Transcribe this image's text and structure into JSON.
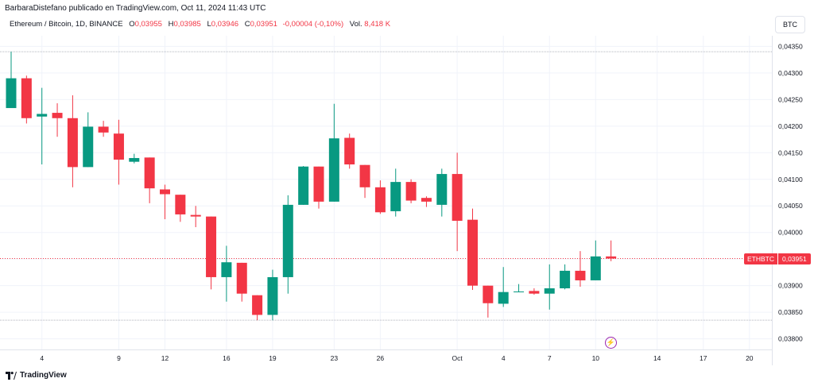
{
  "header": {
    "published": "BarbaraDistefano publicado en TradingView.com, Oct 11, 2024 11:43 UTC"
  },
  "legend": {
    "symbol": "Ethereum / Bitcoin, 1D, BINANCE",
    "o_label": "O",
    "o": "0,03955",
    "h_label": "H",
    "h": "0,03985",
    "l_label": "L",
    "l": "0,03946",
    "c_label": "C",
    "c": "0,03951",
    "change": "-0,00004 (-0,10%)",
    "vol_label": "Vol.",
    "vol": "8,418 K"
  },
  "currency_button": "BTC",
  "price_label": {
    "symbol": "ETHBTC",
    "value": "0,03951"
  },
  "logo": {
    "text": "TradingView"
  },
  "colors": {
    "up": "#089981",
    "down": "#f23645"
  },
  "icons": {
    "flash": "lightning-icon"
  },
  "chart_data": {
    "type": "candlestick",
    "ylim": [
      0.0378,
      0.0437
    ],
    "yticks": [
      0.038,
      0.0385,
      0.039,
      0.0395,
      0.04,
      0.0405,
      0.041,
      0.0415,
      0.042,
      0.0425,
      0.043,
      0.0435
    ],
    "ytick_labels": [
      "0,03800",
      "0,03850",
      "0,03900",
      "0,03950",
      "0,04000",
      "0,04050",
      "0,04100",
      "0,04150",
      "0,04200",
      "0,04250",
      "0,04300",
      "0,04350"
    ],
    "xticks": [
      {
        "index": 2,
        "label": "4"
      },
      {
        "index": 7,
        "label": "9"
      },
      {
        "index": 10,
        "label": "12"
      },
      {
        "index": 14,
        "label": "16"
      },
      {
        "index": 17,
        "label": "19"
      },
      {
        "index": 21,
        "label": "23"
      },
      {
        "index": 24,
        "label": "26"
      },
      {
        "index": 29,
        "label": "Oct"
      },
      {
        "index": 32,
        "label": "4"
      },
      {
        "index": 35,
        "label": "7"
      },
      {
        "index": 38,
        "label": "10"
      },
      {
        "index": 42,
        "label": "14"
      },
      {
        "index": 45,
        "label": "17"
      },
      {
        "index": 48,
        "label": "20"
      }
    ],
    "candles": [
      {
        "o": 0.04234,
        "h": 0.0434,
        "l": 0.04234,
        "c": 0.0429
      },
      {
        "o": 0.0429,
        "h": 0.04295,
        "l": 0.04205,
        "c": 0.04215
      },
      {
        "o": 0.04218,
        "h": 0.04272,
        "l": 0.04128,
        "c": 0.04223
      },
      {
        "o": 0.04225,
        "h": 0.04243,
        "l": 0.0418,
        "c": 0.04215
      },
      {
        "o": 0.04215,
        "h": 0.04258,
        "l": 0.04085,
        "c": 0.04123
      },
      {
        "o": 0.04123,
        "h": 0.04226,
        "l": 0.04123,
        "c": 0.04199
      },
      {
        "o": 0.04199,
        "h": 0.0421,
        "l": 0.0418,
        "c": 0.04188
      },
      {
        "o": 0.04186,
        "h": 0.04212,
        "l": 0.0409,
        "c": 0.04137
      },
      {
        "o": 0.04133,
        "h": 0.04148,
        "l": 0.0413,
        "c": 0.0414
      },
      {
        "o": 0.04141,
        "h": 0.04141,
        "l": 0.04055,
        "c": 0.04083
      },
      {
        "o": 0.04081,
        "h": 0.0409,
        "l": 0.04025,
        "c": 0.04072
      },
      {
        "o": 0.04071,
        "h": 0.04071,
        "l": 0.0402,
        "c": 0.04034
      },
      {
        "o": 0.04033,
        "h": 0.0405,
        "l": 0.0401,
        "c": 0.0403
      },
      {
        "o": 0.0403,
        "h": 0.0403,
        "l": 0.03893,
        "c": 0.03916
      },
      {
        "o": 0.03916,
        "h": 0.03975,
        "l": 0.0387,
        "c": 0.03944
      },
      {
        "o": 0.03943,
        "h": 0.03943,
        "l": 0.0387,
        "c": 0.03885
      },
      {
        "o": 0.03882,
        "h": 0.03882,
        "l": 0.03835,
        "c": 0.03845
      },
      {
        "o": 0.03845,
        "h": 0.0393,
        "l": 0.03835,
        "c": 0.03916
      },
      {
        "o": 0.03916,
        "h": 0.0407,
        "l": 0.03885,
        "c": 0.04052
      },
      {
        "o": 0.04052,
        "h": 0.04125,
        "l": 0.04052,
        "c": 0.04124
      },
      {
        "o": 0.04124,
        "h": 0.04124,
        "l": 0.04045,
        "c": 0.04058
      },
      {
        "o": 0.04058,
        "h": 0.04242,
        "l": 0.04058,
        "c": 0.04177
      },
      {
        "o": 0.04178,
        "h": 0.04186,
        "l": 0.0412,
        "c": 0.04128
      },
      {
        "o": 0.04127,
        "h": 0.04127,
        "l": 0.04065,
        "c": 0.04085
      },
      {
        "o": 0.04085,
        "h": 0.04098,
        "l": 0.04035,
        "c": 0.04038
      },
      {
        "o": 0.0404,
        "h": 0.0412,
        "l": 0.0403,
        "c": 0.04095
      },
      {
        "o": 0.04095,
        "h": 0.041,
        "l": 0.04055,
        "c": 0.0406
      },
      {
        "o": 0.04065,
        "h": 0.04068,
        "l": 0.04048,
        "c": 0.04058
      },
      {
        "o": 0.04052,
        "h": 0.0412,
        "l": 0.0403,
        "c": 0.0411
      },
      {
        "o": 0.0411,
        "h": 0.0415,
        "l": 0.03965,
        "c": 0.04022
      },
      {
        "o": 0.04024,
        "h": 0.04045,
        "l": 0.03892,
        "c": 0.039
      },
      {
        "o": 0.039,
        "h": 0.039,
        "l": 0.0384,
        "c": 0.03867
      },
      {
        "o": 0.03866,
        "h": 0.03935,
        "l": 0.0386,
        "c": 0.03888
      },
      {
        "o": 0.03888,
        "h": 0.03903,
        "l": 0.03888,
        "c": 0.03889
      },
      {
        "o": 0.0389,
        "h": 0.03895,
        "l": 0.03883,
        "c": 0.03885
      },
      {
        "o": 0.03885,
        "h": 0.0394,
        "l": 0.03855,
        "c": 0.03895
      },
      {
        "o": 0.03895,
        "h": 0.0394,
        "l": 0.03893,
        "c": 0.03928
      },
      {
        "o": 0.03928,
        "h": 0.03965,
        "l": 0.03898,
        "c": 0.0391
      },
      {
        "o": 0.0391,
        "h": 0.03985,
        "l": 0.0391,
        "c": 0.03955
      },
      {
        "o": 0.03955,
        "h": 0.03985,
        "l": 0.03946,
        "c": 0.03951
      }
    ],
    "last_price": 0.03951
  }
}
